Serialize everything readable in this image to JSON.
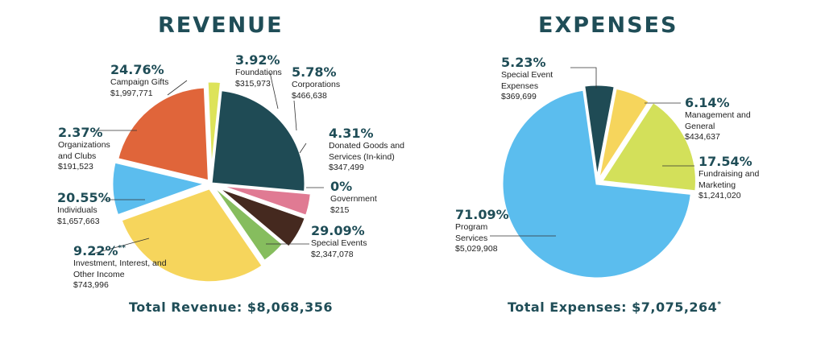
{
  "chart_data": [
    {
      "type": "pie",
      "title": "REVENUE",
      "total_label": "Total Revenue: $8,068,356",
      "slices": [
        {
          "pct": "24.76%",
          "value": 24.76,
          "name": "Campaign Gifts",
          "amount": "$1,997,771",
          "color": "#1f4b55"
        },
        {
          "pct": "3.92%",
          "value": 3.92,
          "name": "Foundations",
          "amount": "$315,973",
          "color": "#e07a93"
        },
        {
          "pct": "5.78%",
          "value": 5.78,
          "name": "Corporations",
          "amount": "$466,638",
          "color": "#45291f"
        },
        {
          "pct": "4.31%",
          "value": 4.31,
          "name": "Donated Goods and Services (In-kind)",
          "amount": "$347,499",
          "color": "#86bd5e"
        },
        {
          "pct": "0%",
          "value": 0.0,
          "name": "Government",
          "amount": "$215",
          "color": "#888888"
        },
        {
          "pct": "29.09%",
          "value": 29.09,
          "name": "Special Events",
          "amount": "$2,347,078",
          "color": "#f6d55c"
        },
        {
          "pct": "9.22%",
          "pct_suffix": "**",
          "value": 9.22,
          "name": "Investment, Interest, and Other Income",
          "amount": "$743,996",
          "color": "#5bbdee"
        },
        {
          "pct": "20.55%",
          "value": 20.55,
          "name": "Individuals",
          "amount": "$1,657,663",
          "color": "#e0653a"
        },
        {
          "pct": "2.37%",
          "value": 2.37,
          "name": "Organizations and Clubs",
          "amount": "$191,523",
          "color": "#dde35a"
        }
      ]
    },
    {
      "type": "pie",
      "title": "EXPENSES",
      "total_label": "Total Expenses: $7,075,264",
      "total_suffix": "*",
      "slices": [
        {
          "pct": "5.23%",
          "value": 5.23,
          "name": "Special Event Expenses",
          "amount": "$369,699",
          "color": "#1f4b55"
        },
        {
          "pct": "6.14%",
          "value": 6.14,
          "name": "Management and General",
          "amount": "$434,637",
          "color": "#f6d55c"
        },
        {
          "pct": "17.54%",
          "value": 17.54,
          "name": "Fundraising and Marketing",
          "amount": "$1,241,020",
          "color": "#d3e05a"
        },
        {
          "pct": "71.09%",
          "value": 71.09,
          "name": "Program Services",
          "amount": "$5,029,908",
          "color": "#5bbdee"
        }
      ]
    }
  ]
}
